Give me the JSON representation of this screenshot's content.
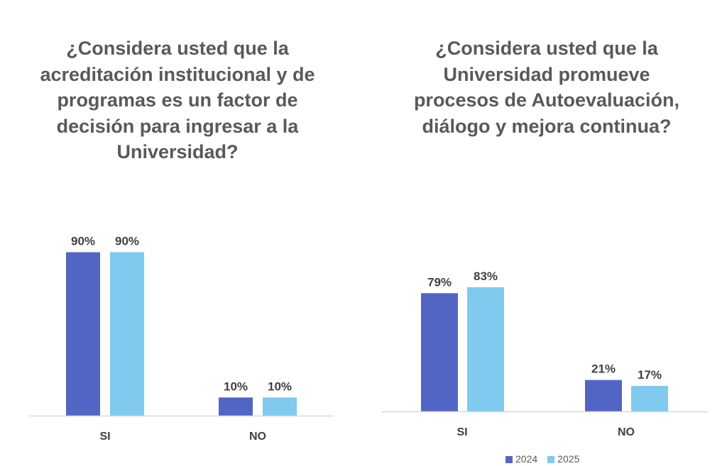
{
  "colors": {
    "2024": "#5166c4",
    "2025": "#7fcaee"
  },
  "chart_data": [
    {
      "type": "bar",
      "title_lines": [
        "¿Considera usted que la",
        "acreditación institucional y de",
        "programas es un factor de",
        "decisión para ingresar a la",
        "Universidad?"
      ],
      "categories": [
        "SI",
        "NO"
      ],
      "series": [
        {
          "name": "2024",
          "values": [
            90,
            10
          ],
          "labels": [
            "90%",
            "10%"
          ]
        },
        {
          "name": "2025",
          "values": [
            90,
            10
          ],
          "labels": [
            "90%",
            "10%"
          ]
        }
      ],
      "ylim": [
        0,
        100
      ],
      "grid": false
    },
    {
      "type": "bar",
      "title_lines": [
        "¿Considera usted que la",
        "Universidad promueve",
        "procesos de Autoevaluación,",
        "diálogo y mejora continua?"
      ],
      "categories": [
        "SI",
        "NO"
      ],
      "series": [
        {
          "name": "2024",
          "values": [
            79,
            21
          ],
          "labels": [
            "79%",
            "21%"
          ]
        },
        {
          "name": "2025",
          "values": [
            83,
            17
          ],
          "labels": [
            "83%",
            "17%"
          ]
        }
      ],
      "ylim": [
        0,
        100
      ],
      "grid": false,
      "legend": {
        "placement": "bottom",
        "entries": [
          "2024",
          "2025"
        ]
      }
    }
  ]
}
